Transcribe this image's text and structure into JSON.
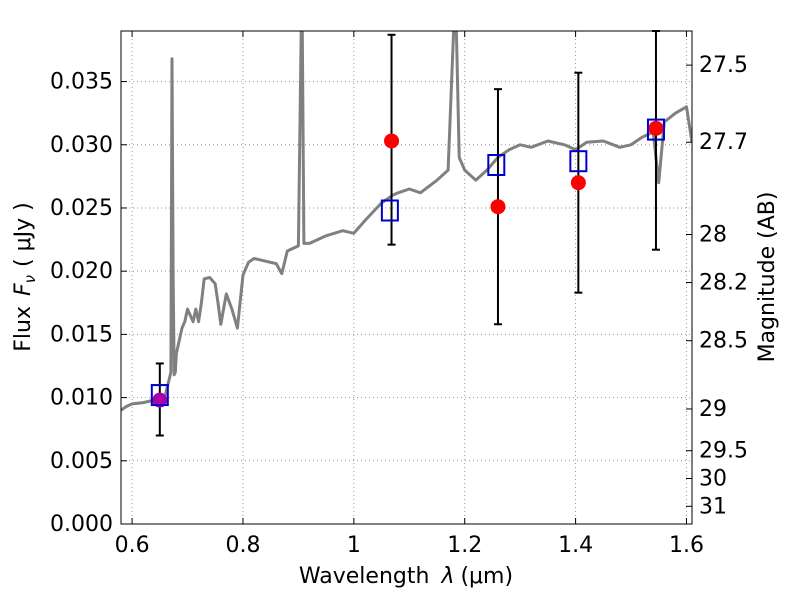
{
  "chart_data": {
    "type": "scatter",
    "xlabel_prefix": "Wavelength",
    "xlabel_symbol": "λ",
    "xlabel_unit": "(μm)",
    "ylabel_prefix": "Flux",
    "ylabel_symbol": "F",
    "ylabel_sub": "ν",
    "ylabel_unit": "( μJy )",
    "y2label": "Magnitude (AB)",
    "xlim": [
      0.58,
      1.61
    ],
    "ylim": [
      0.0,
      0.039
    ],
    "grid": true,
    "x_ticks": [
      {
        "v": 0.6,
        "label": "0.6"
      },
      {
        "v": 0.8,
        "label": "0.8"
      },
      {
        "v": 1.0,
        "label": "1"
      },
      {
        "v": 1.2,
        "label": "1.2"
      },
      {
        "v": 1.4,
        "label": "1.4"
      },
      {
        "v": 1.6,
        "label": "1.6"
      }
    ],
    "y_ticks": [
      {
        "v": 0.0,
        "label": "0.000"
      },
      {
        "v": 0.005,
        "label": "0.005"
      },
      {
        "v": 0.01,
        "label": "0.010"
      },
      {
        "v": 0.015,
        "label": "0.015"
      },
      {
        "v": 0.02,
        "label": "0.020"
      },
      {
        "v": 0.025,
        "label": "0.025"
      },
      {
        "v": 0.03,
        "label": "0.030"
      },
      {
        "v": 0.035,
        "label": "0.035"
      }
    ],
    "y2_ticks": [
      {
        "flux": 0.0363,
        "label": "27.5"
      },
      {
        "flux": 0.0302,
        "label": "27.7"
      },
      {
        "flux": 0.0229,
        "label": "28"
      },
      {
        "flux": 0.0191,
        "label": "28.2"
      },
      {
        "flux": 0.0145,
        "label": "28.5"
      },
      {
        "flux": 0.0091,
        "label": "29"
      },
      {
        "flux": 0.0058,
        "label": "29.5"
      },
      {
        "flux": 0.0036,
        "label": "30"
      },
      {
        "flux": 0.0014,
        "label": "31"
      }
    ],
    "colors": {
      "model": "#808080",
      "observed": "#ff0000",
      "observed_first": "#aa00aa",
      "synthetic": "#0000cc",
      "errorbar": "#000000",
      "grid": "#999999"
    },
    "model_spectrum": {
      "name": "",
      "x": [
        0.58,
        0.59,
        0.6,
        0.62,
        0.64,
        0.66,
        0.67,
        0.672,
        0.674,
        0.676,
        0.678,
        0.68,
        0.69,
        0.695,
        0.7,
        0.705,
        0.71,
        0.715,
        0.72,
        0.725,
        0.73,
        0.74,
        0.75,
        0.755,
        0.76,
        0.77,
        0.78,
        0.79,
        0.8,
        0.81,
        0.82,
        0.84,
        0.86,
        0.87,
        0.88,
        0.9,
        0.905,
        0.907,
        0.91,
        0.92,
        0.95,
        0.98,
        1.0,
        1.02,
        1.05,
        1.07,
        1.08,
        1.1,
        1.12,
        1.15,
        1.17,
        1.18,
        1.185,
        1.19,
        1.195,
        1.2,
        1.22,
        1.24,
        1.26,
        1.28,
        1.3,
        1.32,
        1.35,
        1.38,
        1.4,
        1.42,
        1.45,
        1.48,
        1.5,
        1.52,
        1.54,
        1.55,
        1.56,
        1.58,
        1.6,
        1.61
      ],
      "y": [
        0.009,
        0.0093,
        0.0095,
        0.0096,
        0.0098,
        0.0102,
        0.012,
        0.0368,
        0.02,
        0.0118,
        0.012,
        0.0135,
        0.0155,
        0.016,
        0.017,
        0.0165,
        0.016,
        0.017,
        0.016,
        0.0175,
        0.0194,
        0.0195,
        0.019,
        0.0175,
        0.0158,
        0.0182,
        0.017,
        0.0155,
        0.0197,
        0.0207,
        0.021,
        0.0208,
        0.0206,
        0.0198,
        0.0216,
        0.022,
        0.039,
        0.039,
        0.0222,
        0.0222,
        0.0228,
        0.0232,
        0.023,
        0.024,
        0.0254,
        0.026,
        0.0262,
        0.0265,
        0.0262,
        0.0272,
        0.028,
        0.039,
        0.039,
        0.029,
        0.0285,
        0.028,
        0.0272,
        0.028,
        0.029,
        0.0296,
        0.03,
        0.0298,
        0.0303,
        0.03,
        0.0296,
        0.0302,
        0.0303,
        0.0298,
        0.03,
        0.0306,
        0.031,
        0.027,
        0.0318,
        0.0325,
        0.033,
        0.0302
      ]
    },
    "observed": {
      "name": "",
      "points": [
        {
          "x": 0.65,
          "y": 0.0098,
          "err_low": 0.007,
          "err_high": 0.0127
        },
        {
          "x": 1.068,
          "y": 0.0303,
          "err_low": 0.0221,
          "err_high": 0.0387
        },
        {
          "x": 1.26,
          "y": 0.0251,
          "err_low": 0.0158,
          "err_high": 0.0344
        },
        {
          "x": 1.405,
          "y": 0.027,
          "err_low": 0.0183,
          "err_high": 0.0357
        },
        {
          "x": 1.545,
          "y": 0.0313,
          "err_low": 0.0217,
          "err_high": 0.039
        }
      ]
    },
    "synthetic": {
      "name": "",
      "points": [
        {
          "x": 0.65,
          "y": 0.0102
        },
        {
          "x": 1.065,
          "y": 0.0248
        },
        {
          "x": 1.257,
          "y": 0.0284
        },
        {
          "x": 1.405,
          "y": 0.0287
        },
        {
          "x": 1.545,
          "y": 0.0312
        }
      ]
    }
  }
}
